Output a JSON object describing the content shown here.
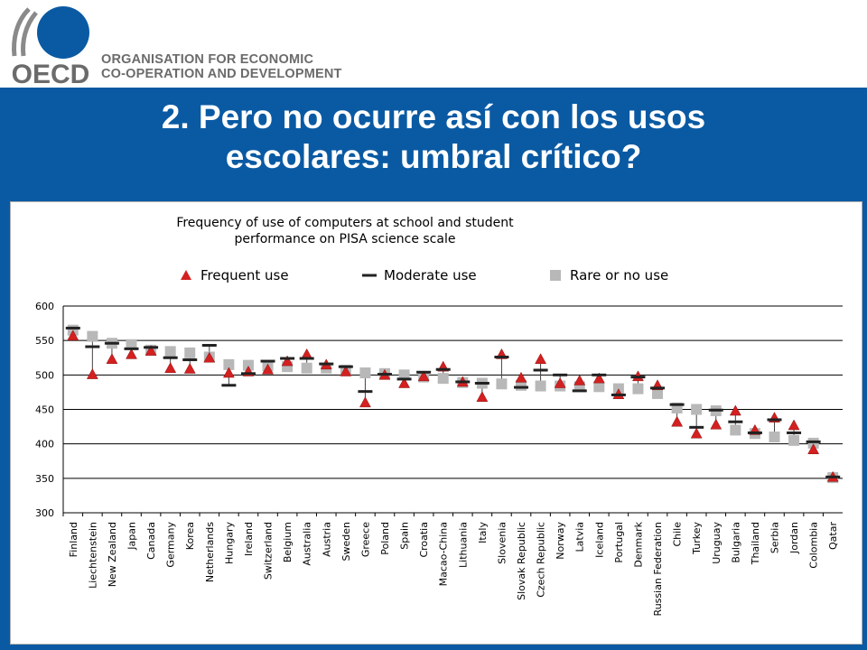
{
  "organisation": {
    "logo_text": "OECD",
    "name_line1": "ORGANISATION FOR ECONOMIC",
    "name_line2": "CO-OPERATION AND DEVELOPMENT",
    "brand_blue": "#0a5aa3"
  },
  "slide": {
    "title_line1": "2. Pero no ocurre así con los usos",
    "title_line2": "escolares: umbral crítico?"
  },
  "chart_data": {
    "type": "scatter",
    "title_line1": "Frequency of use of computers at school and student",
    "title_line2": "performance on PISA science scale",
    "ylim": [
      300,
      600
    ],
    "yticks": [
      300,
      350,
      400,
      450,
      500,
      550,
      600
    ],
    "grid": true,
    "legend_position": "top",
    "categories": [
      "Finland",
      "Liechtenstein",
      "New Zealand",
      "Japan",
      "Canada",
      "Germany",
      "Korea",
      "Netherlands",
      "Hungary",
      "Ireland",
      "Switzerland",
      "Belgium",
      "Australia",
      "Austria",
      "Sweden",
      "Greece",
      "Poland",
      "Spain",
      "Croatia",
      "Macao-China",
      "Lithuania",
      "Italy",
      "Slovenia",
      "Slovak Republic",
      "Czech Republic",
      "Norway",
      "Latvia",
      "Iceland",
      "Portugal",
      "Denmark",
      "Russian Federation",
      "Chile",
      "Turkey",
      "Uruguay",
      "Bulgaria",
      "Thailand",
      "Serbia",
      "Jordan",
      "Colombia",
      "Qatar"
    ],
    "series": [
      {
        "name": "Frequent use",
        "marker": "triangle",
        "color": "#d42020",
        "values": [
          557,
          501,
          523,
          530,
          535,
          510,
          509,
          525,
          503,
          505,
          508,
          520,
          530,
          515,
          505,
          460,
          500,
          488,
          498,
          512,
          490,
          468,
          530,
          496,
          523,
          488,
          492,
          495,
          472,
          498,
          485,
          432,
          415,
          428,
          448,
          420,
          438,
          427,
          392,
          352
        ]
      },
      {
        "name": "Moderate use",
        "marker": "dash",
        "color": "#222222",
        "values": [
          568,
          541,
          546,
          538,
          540,
          525,
          522,
          543,
          485,
          502,
          520,
          524,
          524,
          516,
          512,
          476,
          501,
          494,
          504,
          508,
          490,
          488,
          526,
          482,
          507,
          500,
          477,
          500,
          471,
          497,
          481,
          457,
          424,
          449,
          432,
          416,
          435,
          416,
          403,
          352
        ]
      },
      {
        "name": "Rare or no use",
        "marker": "square",
        "color": "#b8b8b8",
        "values": [
          565,
          556,
          546,
          544,
          536,
          534,
          532,
          526,
          515,
          514,
          513,
          512,
          510,
          510,
          507,
          503,
          502,
          500,
          497,
          495,
          489,
          488,
          487,
          485,
          484,
          484,
          483,
          483,
          480,
          480,
          473,
          452,
          450,
          448,
          420,
          415,
          410,
          405,
          401,
          351
        ]
      }
    ]
  }
}
